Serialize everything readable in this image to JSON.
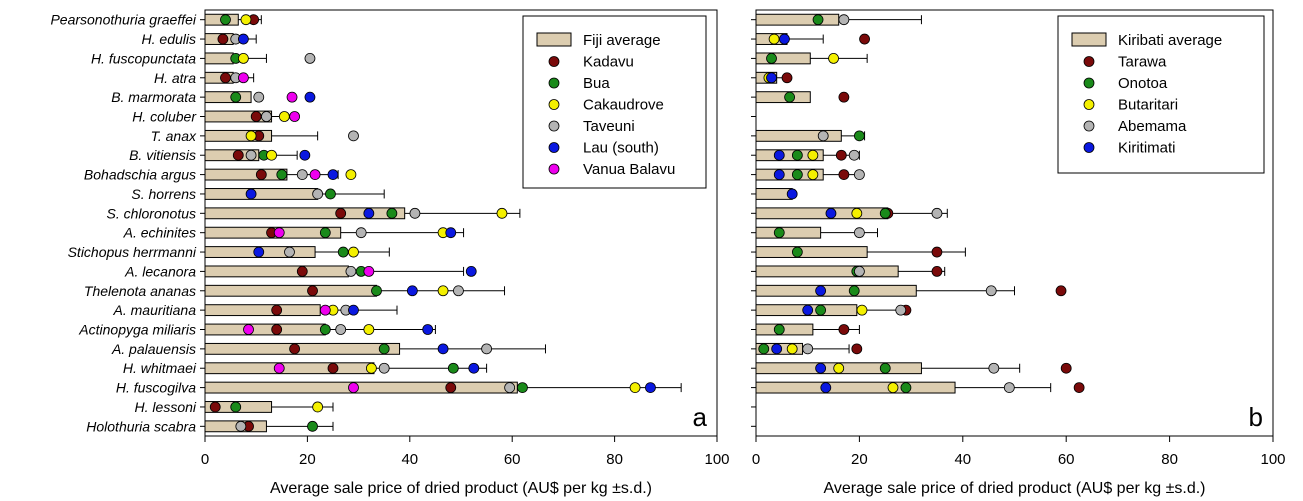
{
  "categories": [
    "Pearsonothuria graeffei",
    "H. edulis",
    "H. fuscopunctata",
    "H. atra",
    "B. marmorata",
    "H. coluber",
    "T. anax",
    "B. vitiensis",
    "Bohadschia argus",
    "S. horrens",
    "S. chloronotus",
    "A. echinites",
    "Stichopus herrmanni",
    "A. lecanora",
    "Thelenota ananas",
    "A. mauritiana",
    "Actinopyga miliaris",
    "A. palauensis",
    "H. whitmaei",
    "H. fuscogilva",
    "H. lessoni",
    "Holothuria scabra"
  ],
  "chart_data": [
    {
      "type": "bar",
      "panel_letter": "a",
      "xlabel": "Average sale price of dried product (AU$ per kg ±s.d.)",
      "xlim": [
        0,
        100
      ],
      "xticks": [
        0,
        20,
        40,
        60,
        80,
        100
      ],
      "legend_position": "top-right",
      "average": {
        "name": "Fiji average",
        "values": [
          6.5,
          5.5,
          5.5,
          5.5,
          9,
          13,
          13,
          10.5,
          16,
          22,
          39,
          26.5,
          21.5,
          28,
          33.5,
          22.5,
          23.5,
          38,
          33,
          61,
          13,
          12
        ],
        "sd": [
          4.5,
          4.5,
          6.5,
          4,
          null,
          5,
          9,
          7.5,
          10,
          13,
          22.5,
          24,
          14.5,
          22.5,
          25,
          15,
          21.5,
          28.5,
          22,
          32,
          12,
          13
        ]
      },
      "series": [
        {
          "name": "Kadavu",
          "color": "#7a0a0a",
          "values": [
            9.5,
            3.5,
            null,
            4,
            null,
            10,
            10.5,
            6.5,
            11,
            null,
            26.5,
            13,
            null,
            19,
            21,
            14,
            14,
            17.5,
            25,
            48,
            2,
            8.5
          ]
        },
        {
          "name": "Bua",
          "color": "#1a8a1a",
          "values": [
            4,
            null,
            6,
            null,
            6,
            null,
            null,
            11.5,
            15,
            24.5,
            36.5,
            23.5,
            27,
            30.5,
            33.5,
            null,
            23.5,
            35,
            48.5,
            62,
            6,
            21
          ]
        },
        {
          "name": "Cakaudrove",
          "color": "#f4f000",
          "values": [
            8,
            null,
            7.5,
            null,
            null,
            15.5,
            9,
            13,
            28.5,
            null,
            58,
            46.5,
            29,
            null,
            46.5,
            25,
            32,
            null,
            32.5,
            84,
            22,
            null
          ]
        },
        {
          "name": "Taveuni",
          "color": "#b4b4b4",
          "values": [
            null,
            6,
            20.5,
            6,
            10.5,
            12,
            29,
            9,
            19,
            22,
            41,
            30.5,
            16.5,
            28.5,
            49.5,
            27.5,
            26.5,
            55,
            35,
            59.5,
            null,
            7
          ]
        },
        {
          "name": "Lau (south)",
          "color": "#0a18e0",
          "values": [
            null,
            7.5,
            null,
            null,
            20.5,
            null,
            null,
            19.5,
            25,
            9,
            32,
            48,
            10.5,
            52,
            40.5,
            29,
            43.5,
            46.5,
            52.5,
            87,
            null,
            null
          ]
        },
        {
          "name": "Vanua Balavu",
          "color": "#ee00ee",
          "values": [
            null,
            null,
            null,
            7.5,
            17,
            17.5,
            null,
            null,
            21.5,
            null,
            null,
            14.5,
            null,
            32,
            null,
            23.5,
            8.5,
            null,
            14.5,
            29,
            null,
            null
          ]
        }
      ]
    },
    {
      "type": "bar",
      "panel_letter": "b",
      "xlabel": "Average sale price of dried product (AU$ per kg ±s.d.)",
      "xlim": [
        0,
        100
      ],
      "xticks": [
        0,
        20,
        40,
        60,
        80,
        100
      ],
      "legend_position": "top-right",
      "average": {
        "name": "Kiribati average",
        "values": [
          16,
          6,
          10.5,
          4,
          10.5,
          null,
          16.5,
          13,
          13,
          7,
          25.5,
          12.5,
          21.5,
          27.5,
          31,
          19.5,
          11,
          9,
          32,
          38.5,
          null,
          null
        ],
        "sd": [
          16,
          7,
          11,
          2,
          null,
          null,
          4.5,
          7,
          7.5,
          0.5,
          11.5,
          11,
          19,
          9,
          19,
          10,
          9,
          9,
          19,
          18.5,
          null,
          null
        ]
      },
      "series": [
        {
          "name": "Tarawa",
          "color": "#7a0a0a",
          "values": [
            null,
            21,
            null,
            6,
            17,
            null,
            null,
            16.5,
            17,
            null,
            25.5,
            null,
            35,
            35,
            59,
            29,
            17,
            19.5,
            60,
            62.5,
            null,
            null
          ]
        },
        {
          "name": "Onotoa",
          "color": "#1a8a1a",
          "values": [
            12,
            null,
            3,
            null,
            6.5,
            null,
            20,
            8,
            8,
            null,
            25,
            4.5,
            8,
            19.5,
            19,
            12.5,
            4.5,
            1.5,
            25,
            29,
            null,
            null
          ]
        },
        {
          "name": "Butaritari",
          "color": "#f4f000",
          "values": [
            null,
            3.5,
            15,
            2.5,
            null,
            null,
            null,
            11,
            11,
            null,
            19.5,
            null,
            null,
            null,
            null,
            20.5,
            null,
            7,
            16,
            26.5,
            null,
            null
          ]
        },
        {
          "name": "Abemama",
          "color": "#b4b4b4",
          "values": [
            17,
            null,
            null,
            null,
            null,
            null,
            13,
            19,
            20,
            null,
            35,
            20,
            null,
            20,
            45.5,
            28,
            null,
            10,
            46,
            49,
            null,
            null
          ]
        },
        {
          "name": "Kiritimati",
          "color": "#0a18e0",
          "values": [
            null,
            5.5,
            null,
            3,
            null,
            null,
            null,
            4.5,
            4.5,
            7,
            14.5,
            null,
            null,
            null,
            12.5,
            10,
            null,
            4,
            12.5,
            13.5,
            null,
            null
          ]
        }
      ]
    }
  ]
}
